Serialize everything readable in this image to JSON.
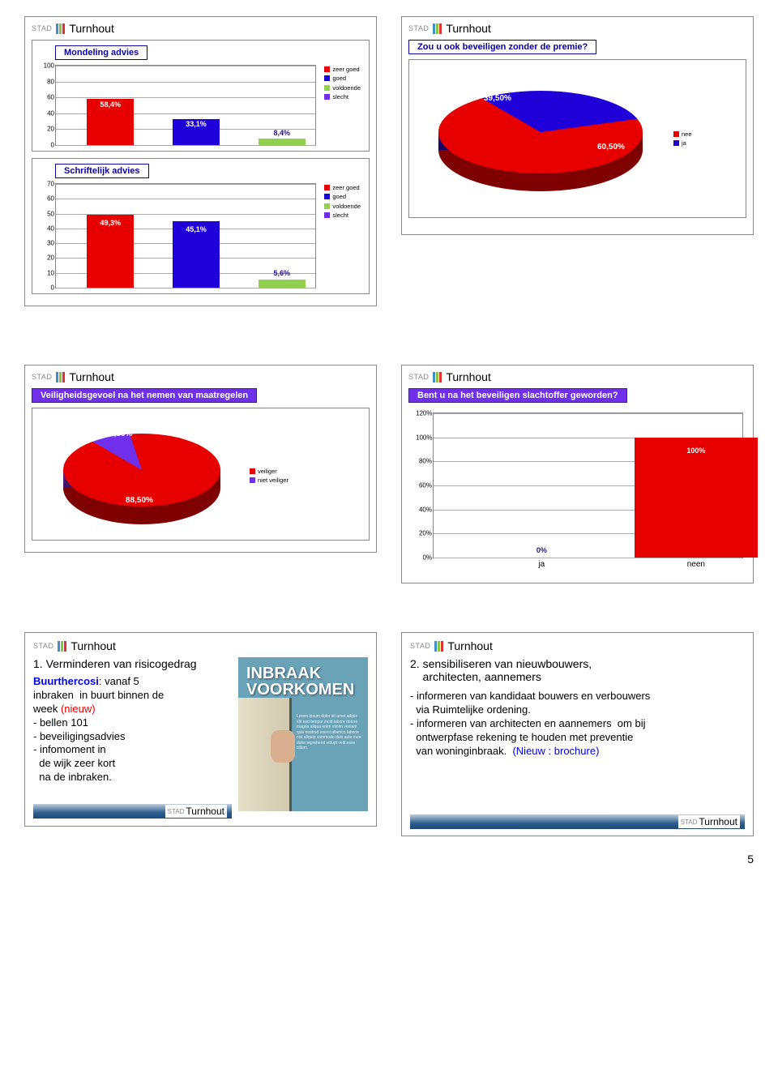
{
  "brand": {
    "stad": "STAD",
    "name": "Turnhout",
    "bar_colors": [
      "#3f90c9",
      "#8ac33f",
      "#e03030"
    ]
  },
  "page_number": "5",
  "colors": {
    "red": "#e60000",
    "blue": "#1f00d8",
    "green": "#92d050",
    "purple": "#7030eb",
    "grid": "#aaaaaa",
    "title_border": "#0a00a0"
  },
  "panels": {
    "p1a": {
      "title": "Mondeling advies",
      "type": "bar",
      "ylim": [
        0,
        100
      ],
      "ytick_step": 20,
      "legend": [
        {
          "label": "zeer goed",
          "color": "#e60000"
        },
        {
          "label": "goed",
          "color": "#1f00d8"
        },
        {
          "label": "voldoende",
          "color": "#92d050"
        },
        {
          "label": "slecht",
          "color": "#7030eb"
        }
      ],
      "bars": [
        {
          "value": 58.4,
          "label": "58,4%",
          "color": "#e60000"
        },
        {
          "value": 33.1,
          "label": "33,1%",
          "color": "#1f00d8"
        },
        {
          "value": 8.4,
          "label": "8,4%",
          "color": "#92d050"
        }
      ]
    },
    "p1b": {
      "title": "Schriftelijk advies",
      "type": "bar",
      "ylim": [
        0,
        70
      ],
      "ytick_step": 10,
      "legend": [
        {
          "label": "zeer goed",
          "color": "#e60000"
        },
        {
          "label": "goed",
          "color": "#1f00d8"
        },
        {
          "label": "voldoende",
          "color": "#92d050"
        },
        {
          "label": "slecht",
          "color": "#7030eb"
        }
      ],
      "bars": [
        {
          "value": 49.3,
          "label": "49,3%",
          "color": "#e60000"
        },
        {
          "value": 45.1,
          "label": "45,1%",
          "color": "#1f00d8"
        },
        {
          "value": 5.6,
          "label": "5,6%",
          "color": "#92d050"
        }
      ]
    },
    "p2": {
      "title": "Zou u ook beveiligen zonder de premie?",
      "type": "pie",
      "slices": [
        {
          "label": "39,50%",
          "value": 39.5,
          "color": "#1f00d8",
          "name": "ja"
        },
        {
          "label": "60,50%",
          "value": 60.5,
          "color": "#e60000",
          "name": "nee"
        }
      ],
      "legend": [
        {
          "label": "nee",
          "color": "#e60000"
        },
        {
          "label": "ja",
          "color": "#1f00d8"
        }
      ]
    },
    "p3": {
      "title": "Veiligheidsgevoel na het nemen van maatregelen",
      "type": "pie",
      "slices": [
        {
          "label": "11,50%",
          "value": 11.5,
          "color": "#7030eb",
          "name": "niet veiliger"
        },
        {
          "label": "88,50%",
          "value": 88.5,
          "color": "#e60000",
          "name": "veiliger"
        }
      ],
      "legend": [
        {
          "label": "veiliger",
          "color": "#e60000"
        },
        {
          "label": "niet veiliger",
          "color": "#7030eb"
        }
      ]
    },
    "p4": {
      "title": "Bent u na het beveiligen slachtoffer geworden?",
      "type": "bar",
      "ylim": [
        0,
        120
      ],
      "ytick_step": 20,
      "unit": "%",
      "bars": [
        {
          "category": "ja",
          "value": 0,
          "label": "0%",
          "color": "#e60000"
        },
        {
          "category": "neen",
          "value": 100,
          "label": "100%",
          "color": "#e60000"
        }
      ]
    },
    "p5": {
      "heading": "1. Verminderen van risicogedrag",
      "lines": [
        {
          "t": "Buurthercosi",
          "c": "#0000ee",
          "b": true
        },
        {
          "t": ": vanaf 5",
          "c": "#000"
        },
        {
          "br": true
        },
        {
          "t": "inbraken  in buurt binnen de",
          "c": "#000"
        },
        {
          "br": true
        },
        {
          "t": "week ",
          "c": "#000"
        },
        {
          "t": "(nieuw)",
          "c": "#e60000"
        },
        {
          "br": true
        },
        {
          "t": "- bellen 101",
          "c": "#000"
        },
        {
          "br": true
        },
        {
          "t": "- beveiligingsadvies",
          "c": "#000"
        },
        {
          "br": true
        },
        {
          "t": "- infomoment in",
          "c": "#000"
        },
        {
          "br": true
        },
        {
          "t": "  de wijk zeer kort",
          "c": "#000"
        },
        {
          "br": true
        },
        {
          "t": "  na de inbraken.",
          "c": "#000"
        }
      ],
      "brochure": {
        "title_l1": "INBRAAK",
        "title_l2": "VOORKOMEN"
      }
    },
    "p6": {
      "heading_l1": "2. sensibiliseren van nieuwbouwers,",
      "heading_l2": "    architecten, aannemers",
      "lines": [
        {
          "t": "- informeren van kandidaat bouwers en verbouwers",
          "c": "#000"
        },
        {
          "br": true
        },
        {
          "t": "  via Ruimtelijke ordening.",
          "c": "#000"
        },
        {
          "br": true
        },
        {
          "t": "- informeren van architecten en aannemers  om bij",
          "c": "#000"
        },
        {
          "br": true
        },
        {
          "t": "  ontwerpfase rekening te houden met preventie",
          "c": "#000"
        },
        {
          "br": true
        },
        {
          "t": "  van woninginbraak.  ",
          "c": "#000"
        },
        {
          "t": "(Nieuw : brochure)",
          "c": "#0000ee"
        }
      ]
    }
  }
}
